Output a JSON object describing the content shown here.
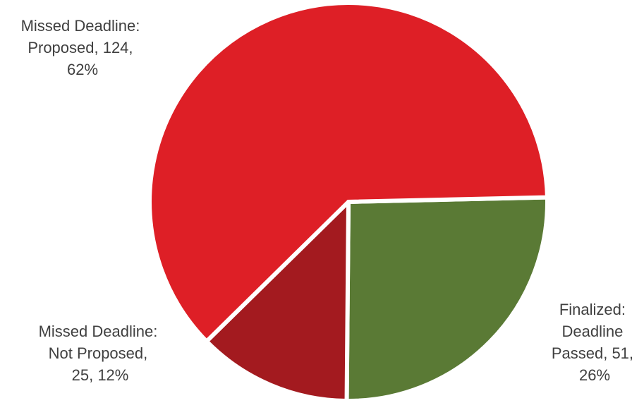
{
  "chart_data": {
    "type": "pie",
    "title": "",
    "categories": [
      "Finalized: Deadline Passed",
      "Missed Deadline: Not Proposed",
      "Missed Deadline: Proposed"
    ],
    "values": [
      51,
      25,
      124
    ],
    "percentages": [
      26,
      12,
      62
    ],
    "colors": [
      "#5a7a35",
      "#a31a1f",
      "#de1f26"
    ],
    "legend": "none",
    "labels": [
      {
        "lines": [
          "Finalized:",
          "Deadline",
          "Passed, 51,",
          "26%"
        ]
      },
      {
        "lines": [
          "Missed Deadline:",
          "Not Proposed,",
          "25, 12%"
        ]
      },
      {
        "lines": [
          "Missed Deadline:",
          "Proposed, 124,",
          "62%"
        ]
      }
    ]
  }
}
